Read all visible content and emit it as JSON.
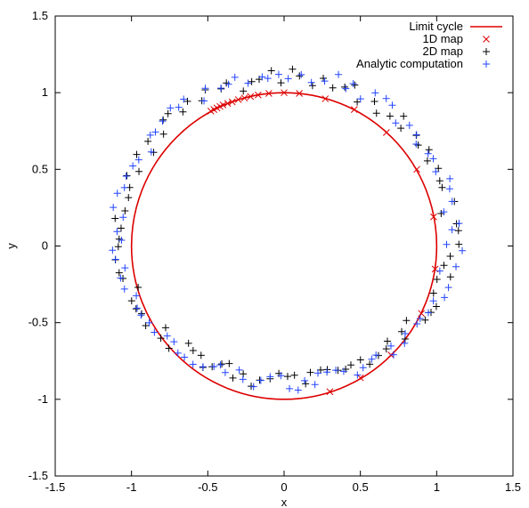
{
  "chart_data": {
    "type": "scatter",
    "title": "",
    "xlabel": "x",
    "ylabel": "y",
    "xlim": [
      -1.5,
      1.5
    ],
    "ylim": [
      -1.5,
      1.5
    ],
    "grid": false,
    "legend_position": "top-right",
    "x_ticks": [
      "-1.5",
      "-1",
      "-0.5",
      "0",
      "0.5",
      "1",
      "1.5"
    ],
    "y_ticks": [
      "-1.5",
      "-1",
      "-0.5",
      "0",
      "0.5",
      "1",
      "1.5"
    ],
    "series": [
      {
        "name": "Limit cycle",
        "kind": "line",
        "color": "#dd0000",
        "shape": "circle",
        "center": [
          0,
          0
        ],
        "radius": 1.0
      },
      {
        "name": "1D map",
        "kind": "marker",
        "marker": "x",
        "color": "#dd0000",
        "points": [
          [
            -0.48,
            0.88
          ],
          [
            -0.46,
            0.89
          ],
          [
            -0.44,
            0.9
          ],
          [
            -0.42,
            0.91
          ],
          [
            -0.4,
            0.92
          ],
          [
            -0.37,
            0.93
          ],
          [
            -0.34,
            0.94
          ],
          [
            -0.3,
            0.955
          ],
          [
            -0.26,
            0.965
          ],
          [
            -0.22,
            0.975
          ],
          [
            -0.17,
            0.985
          ],
          [
            -0.1,
            0.995
          ],
          [
            0.0,
            1.0
          ],
          [
            0.1,
            0.995
          ],
          [
            0.27,
            0.96
          ],
          [
            0.46,
            0.89
          ],
          [
            0.67,
            0.74
          ],
          [
            0.87,
            0.5
          ],
          [
            0.98,
            0.19
          ],
          [
            0.99,
            -0.15
          ],
          [
            0.9,
            -0.44
          ],
          [
            0.7,
            -0.71
          ],
          [
            0.5,
            -0.86
          ],
          [
            0.3,
            -0.95
          ]
        ]
      },
      {
        "name": "2D map",
        "kind": "marker",
        "marker": "+",
        "color": "#000000",
        "ring_radius": 1.1,
        "noise_scale": 0.11,
        "seed": 7,
        "count": 100
      },
      {
        "name": "Analytic computation",
        "kind": "marker",
        "marker": "+",
        "color": "#2244ff",
        "ring_radius": 1.12,
        "noise_scale": 0.11,
        "seed": 19,
        "count": 100
      }
    ]
  }
}
